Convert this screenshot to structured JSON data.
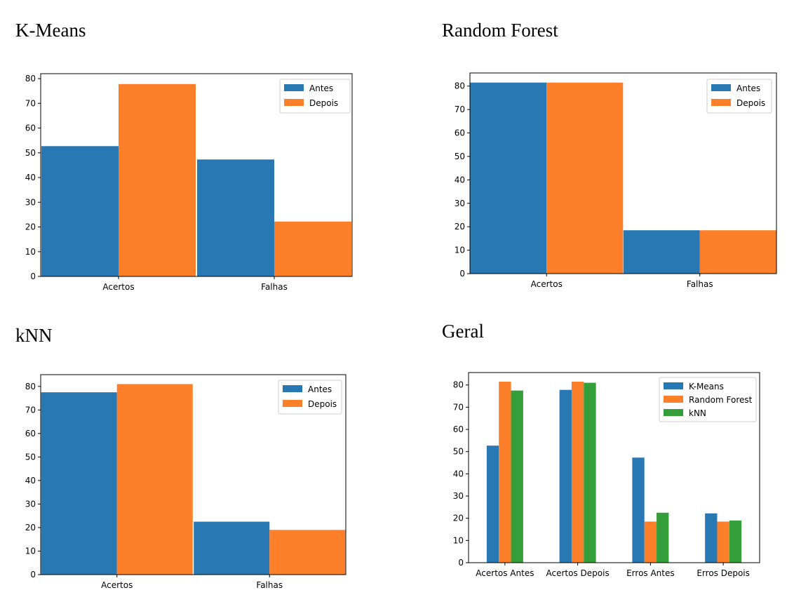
{
  "chart_data": [
    {
      "type": "bar",
      "title": "K-Means",
      "categories": [
        "Acertos",
        "Falhas"
      ],
      "series": [
        {
          "name": "Antes",
          "values": [
            52.7,
            47.3
          ]
        },
        {
          "name": "Depois",
          "values": [
            77.8,
            22.2
          ]
        }
      ],
      "ylim": [
        0,
        82
      ],
      "yticks": [
        0,
        10,
        20,
        30,
        40,
        50,
        60,
        70,
        80
      ],
      "xlabel": "",
      "ylabel": "",
      "grid": false,
      "legend": "top-right"
    },
    {
      "type": "bar",
      "title": "Random Forest",
      "categories": [
        "Acertos",
        "Falhas"
      ],
      "series": [
        {
          "name": "Antes",
          "values": [
            81.5,
            18.5
          ]
        },
        {
          "name": "Depois",
          "values": [
            81.5,
            18.5
          ]
        }
      ],
      "ylim": [
        0,
        85.6
      ],
      "yticks": [
        0,
        10,
        20,
        30,
        40,
        50,
        60,
        70,
        80
      ],
      "xlabel": "",
      "ylabel": "",
      "grid": false,
      "legend": "top-right"
    },
    {
      "type": "bar",
      "title": "kNN",
      "categories": [
        "Acertos",
        "Falhas"
      ],
      "series": [
        {
          "name": "Antes",
          "values": [
            77.5,
            22.5
          ]
        },
        {
          "name": "Depois",
          "values": [
            81.0,
            19.0
          ]
        }
      ],
      "ylim": [
        0,
        85
      ],
      "yticks": [
        0,
        10,
        20,
        30,
        40,
        50,
        60,
        70,
        80
      ],
      "xlabel": "",
      "ylabel": "",
      "grid": false,
      "legend": "top-right"
    },
    {
      "type": "bar",
      "title": "Geral",
      "categories": [
        "Acertos Antes",
        "Acertos Depois",
        "Erros Antes",
        "Erros Depois"
      ],
      "series": [
        {
          "name": "K-Means",
          "values": [
            52.7,
            77.8,
            47.3,
            22.2
          ]
        },
        {
          "name": "Random Forest",
          "values": [
            81.5,
            81.5,
            18.5,
            18.5
          ]
        },
        {
          "name": "kNN",
          "values": [
            77.5,
            81.0,
            22.5,
            19.0
          ]
        }
      ],
      "ylim": [
        0,
        85.6
      ],
      "yticks": [
        0,
        10,
        20,
        30,
        40,
        50,
        60,
        70,
        80
      ],
      "xlabel": "",
      "ylabel": "",
      "grid": false,
      "legend": "top-right"
    }
  ],
  "colors": {
    "blue": "#2878b4",
    "orange": "#fe7f2a",
    "green": "#349e3a",
    "axis": "#000000"
  }
}
